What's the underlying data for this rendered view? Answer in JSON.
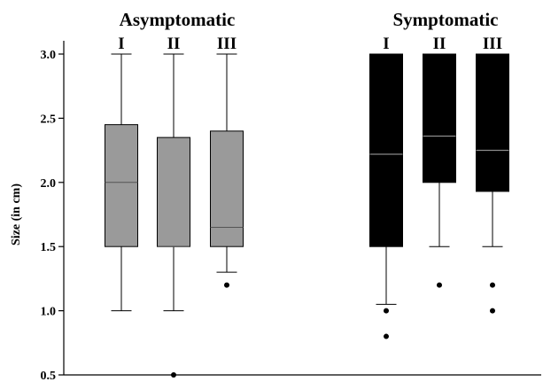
{
  "chart_data": {
    "type": "boxplot",
    "title": "",
    "xlabel": "",
    "ylabel": "Size (in cm)",
    "ylim": [
      0.5,
      3.0
    ],
    "yticks": [
      "0.5",
      "1.0",
      "1.5",
      "2.0",
      "2.5",
      "3.0"
    ],
    "grid": false,
    "groups": [
      {
        "name": "Asymptomatic",
        "color": "#9a9a9a",
        "median_color": "#555555",
        "boxes": [
          {
            "label": "I",
            "whisker_low": 1.0,
            "q1": 1.5,
            "median": 2.0,
            "q3": 2.45,
            "whisker_high": 3.0,
            "outliers": []
          },
          {
            "label": "II",
            "whisker_low": 1.0,
            "q1": 1.5,
            "median": 1.5,
            "q3": 2.35,
            "whisker_high": 3.0,
            "outliers": [
              0.5
            ]
          },
          {
            "label": "III",
            "whisker_low": 1.3,
            "q1": 1.5,
            "median": 1.65,
            "q3": 2.4,
            "whisker_high": 3.0,
            "outliers": [
              1.2
            ]
          }
        ]
      },
      {
        "name": "Symptomatic",
        "color": "#000000",
        "median_color": "#aaaaaa",
        "boxes": [
          {
            "label": "I",
            "whisker_low": 1.05,
            "q1": 1.5,
            "median": 2.22,
            "q3": 3.0,
            "whisker_high": 3.0,
            "outliers": [
              1.0,
              0.8
            ]
          },
          {
            "label": "II",
            "whisker_low": 1.5,
            "q1": 2.0,
            "median": 2.36,
            "q3": 3.0,
            "whisker_high": 3.0,
            "outliers": [
              1.2
            ]
          },
          {
            "label": "III",
            "whisker_low": 1.5,
            "q1": 1.93,
            "median": 2.25,
            "q3": 3.0,
            "whisker_high": 3.0,
            "outliers": [
              1.2,
              1.0
            ]
          }
        ]
      }
    ]
  }
}
